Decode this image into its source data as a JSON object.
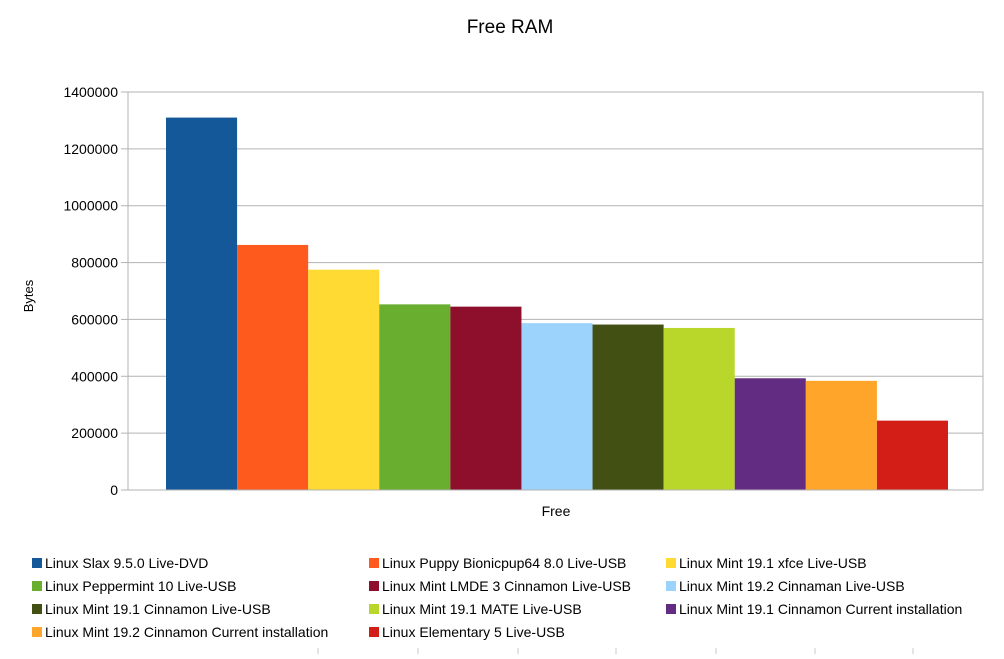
{
  "chart_data": {
    "type": "bar",
    "title": "Free RAM",
    "xlabel": "Free",
    "ylabel": "Bytes",
    "categories": [
      "Free"
    ],
    "ylim": [
      0,
      1400000
    ],
    "yticks": [
      "0",
      "200000",
      "400000",
      "600000",
      "800000",
      "1000000",
      "1200000",
      "1400000"
    ],
    "grid": true,
    "legend_position": "bottom",
    "series": [
      {
        "name": "Linux Slax 9.5.0 Live-DVD",
        "values": [
          1310000
        ],
        "color": "#14589A"
      },
      {
        "name": "Linux Puppy Bionicpup64 8.0 Live-USB",
        "values": [
          862000
        ],
        "color": "#FF5A1E"
      },
      {
        "name": "Linux Mint 19.1 xfce Live-USB",
        "values": [
          775000
        ],
        "color": "#FFDA32"
      },
      {
        "name": "Linux Peppermint 10 Live-USB",
        "values": [
          653000
        ],
        "color": "#69AE2E"
      },
      {
        "name": "Linux Mint LMDE 3 Cinnamon Live-USB",
        "values": [
          645000
        ],
        "color": "#8E0F2C"
      },
      {
        "name": "Linux Mint 19.2 Cinnaman Live-USB",
        "values": [
          587000
        ],
        "color": "#9CD3FD"
      },
      {
        "name": "Linux Mint 19.1 Cinnamon Live-USB",
        "values": [
          582000
        ],
        "color": "#425014"
      },
      {
        "name": "Linux Mint 19.1 MATE Live-USB",
        "values": [
          570000
        ],
        "color": "#B8D72A"
      },
      {
        "name": "Linux Mint 19.1 Cinnamon Current installation",
        "values": [
          393000
        ],
        "color": "#622C82"
      },
      {
        "name": "Linux Mint 19.2 Cinnamon Current installation",
        "values": [
          384000
        ],
        "color": "#FFA62A"
      },
      {
        "name": "Linux Elementary 5 Live-USB",
        "values": [
          244000
        ],
        "color": "#D21E16"
      }
    ]
  }
}
